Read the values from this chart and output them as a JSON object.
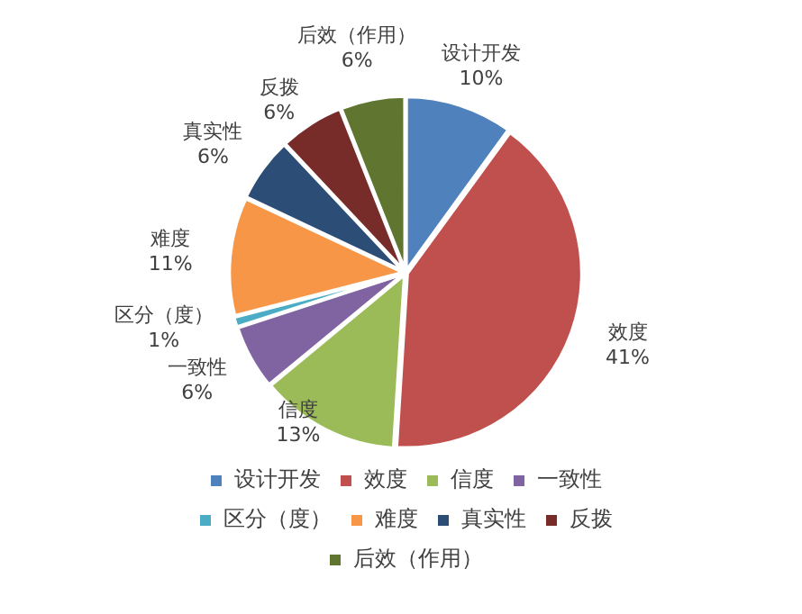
{
  "chart_data": {
    "type": "pie",
    "categories": [
      "设计开发",
      "效度",
      "信度",
      "一致性",
      "区分（度）",
      "难度",
      "真实性",
      "反拨",
      "后效（作用）"
    ],
    "values": [
      10,
      41,
      13,
      6,
      1,
      11,
      6,
      6,
      6
    ],
    "value_labels": [
      "10%",
      "41%",
      "13%",
      "6%",
      "1%",
      "11%",
      "6%",
      "6%",
      "6%"
    ],
    "colors": [
      "#4f81bd",
      "#c0504d",
      "#9bbb59",
      "#8064a2",
      "#4bacc6",
      "#f79646",
      "#2c4d75",
      "#772c2a",
      "#5f7530"
    ],
    "legend": "bottom"
  }
}
